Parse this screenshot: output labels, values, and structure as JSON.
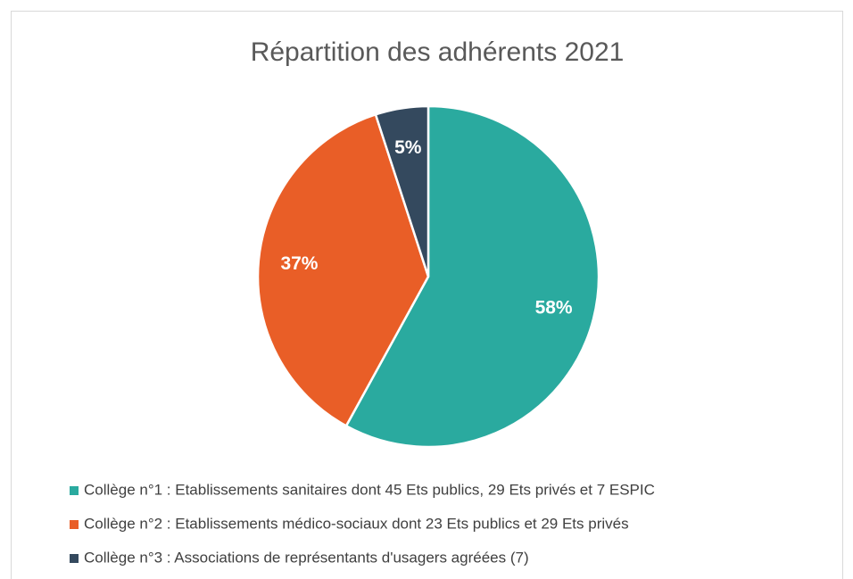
{
  "chart_data": {
    "type": "pie",
    "title": "Répartition des adhérents 2021",
    "categories": [
      "Collège n°1 : Etablissements sanitaires dont 45 Ets publics, 29 Ets privés et 7 ESPIC",
      "Collège n°2 : Etablissements médico-sociaux dont 23 Ets publics et 29 Ets privés",
      "Collège n°3 : Associations de représentants d'usagers agréées (7)"
    ],
    "values": [
      58,
      37,
      5
    ],
    "value_labels": [
      "58%",
      "37%",
      "5%"
    ],
    "colors": [
      "#2aaa9f",
      "#e95e27",
      "#34495e"
    ],
    "legend": "bottom"
  }
}
